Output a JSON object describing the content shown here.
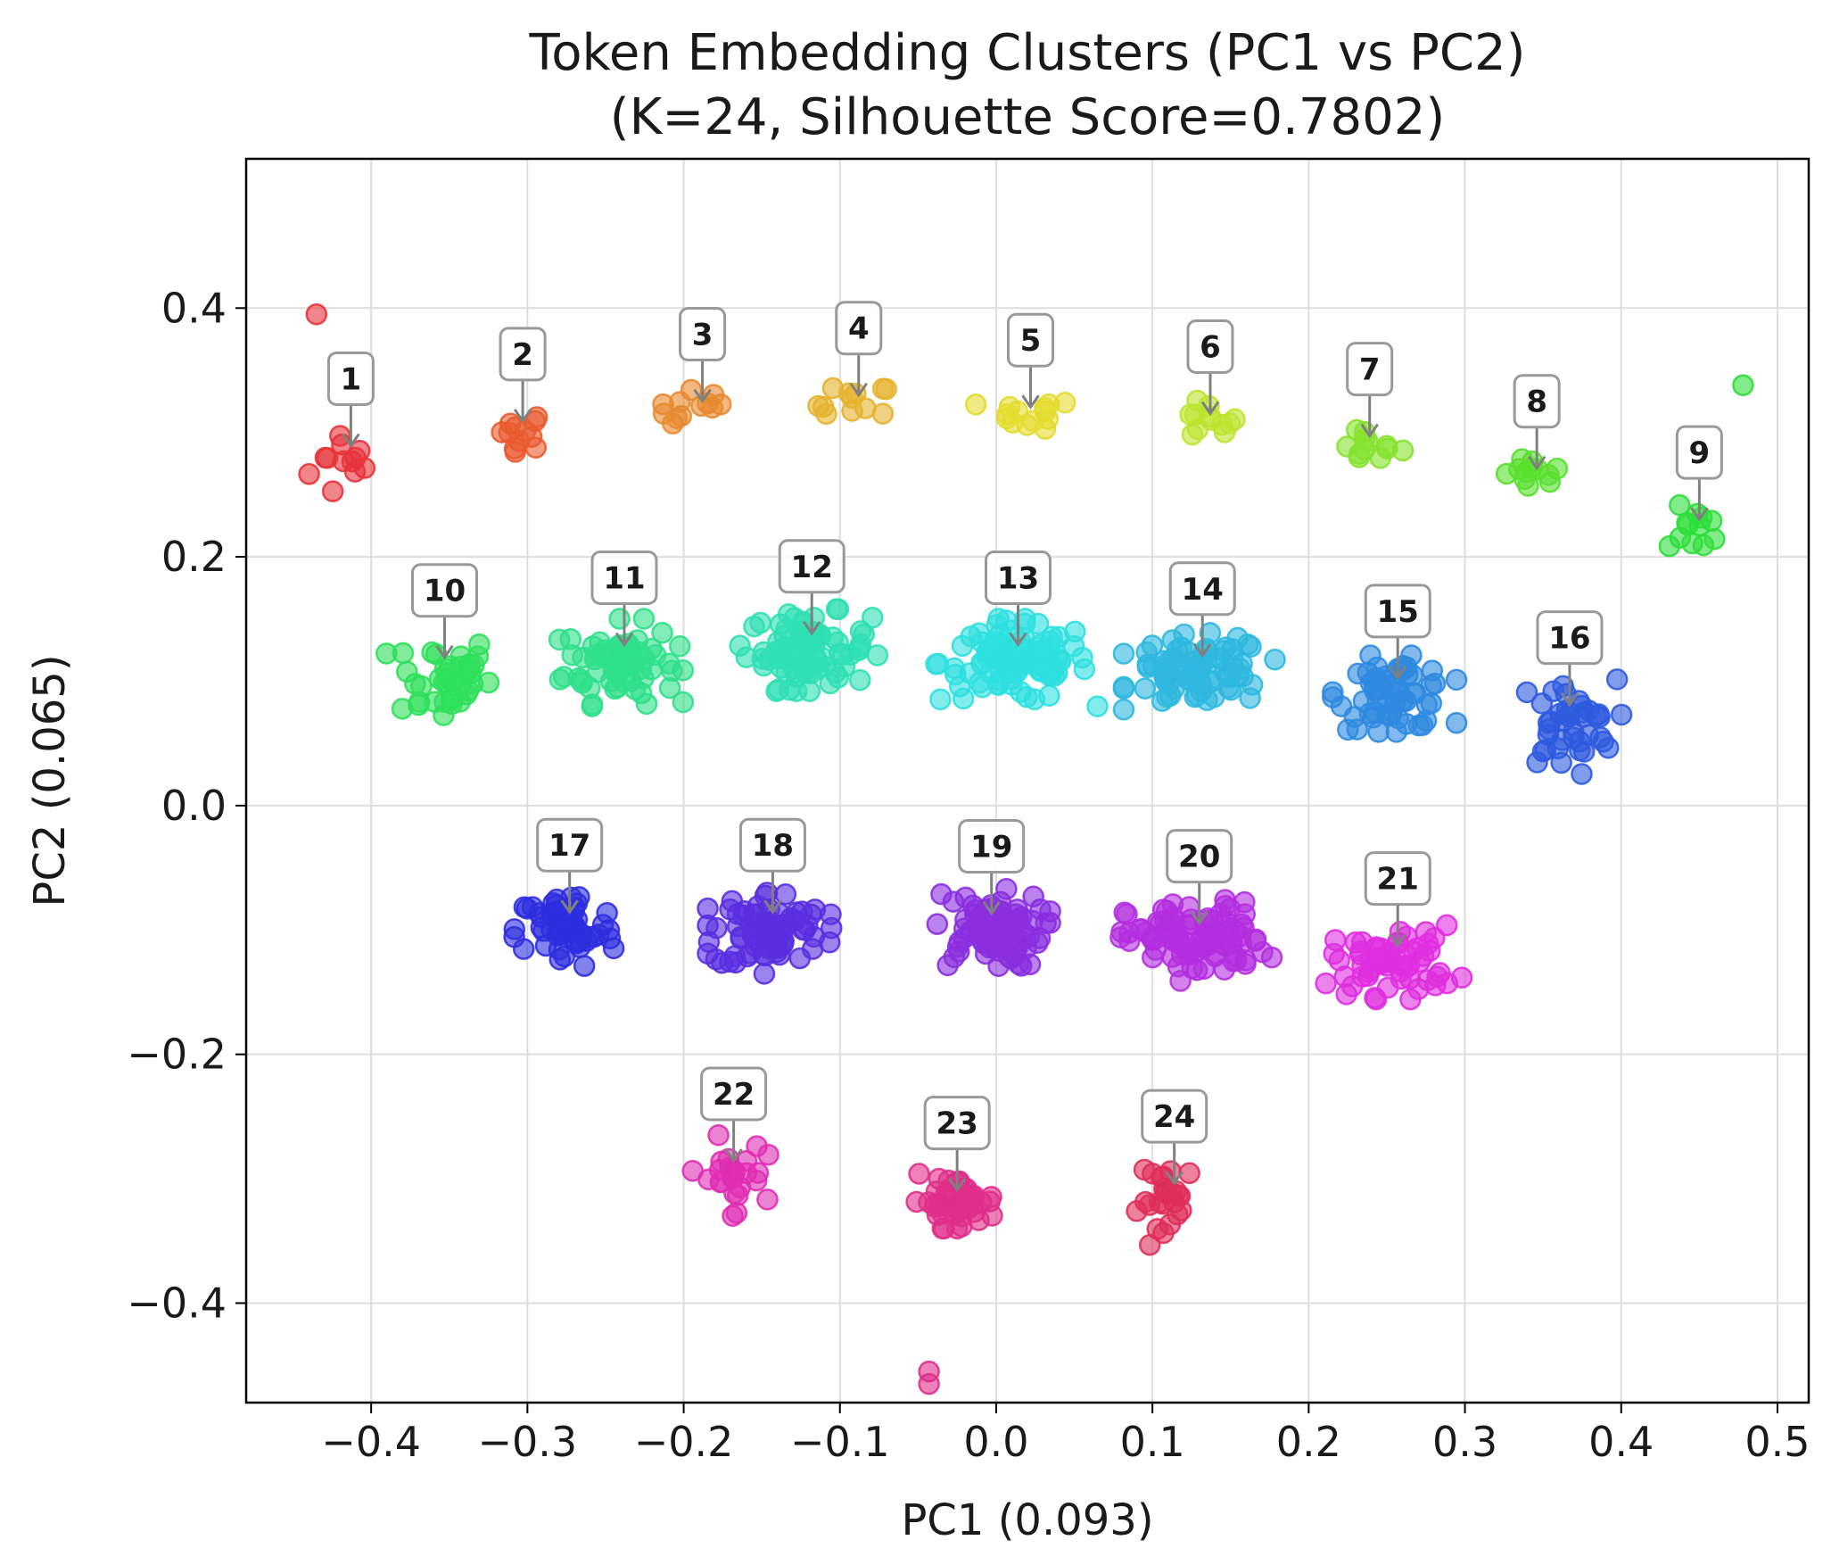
{
  "chart_data": {
    "type": "scatter",
    "title_line1": "Token Embedding Clusters (PC1 vs PC2)",
    "title_line2": "(K=24, Silhouette Score=0.7802)",
    "xlabel": "PC1 (0.093)",
    "ylabel": "PC2 (0.065)",
    "xlim": [
      -0.48,
      0.52
    ],
    "ylim": [
      -0.48,
      0.52
    ],
    "xticks": [
      -0.4,
      -0.3,
      -0.2,
      -0.1,
      0.0,
      0.1,
      0.2,
      0.3,
      0.4,
      0.5
    ],
    "xtick_labels": [
      "−0.4",
      "−0.3",
      "−0.2",
      "−0.1",
      "0.0",
      "0.1",
      "0.2",
      "0.3",
      "0.4",
      "0.5"
    ],
    "yticks": [
      -0.4,
      -0.2,
      0.0,
      0.2,
      0.4
    ],
    "ytick_labels": [
      "−0.4",
      "−0.2",
      "0.0",
      "0.2",
      "0.4"
    ],
    "grid": true,
    "clusters": [
      {
        "label": "1",
        "center": [
          -0.415,
          0.275
        ],
        "spread": [
          0.012,
          0.016
        ],
        "n": 12,
        "color": "#e8333a"
      },
      {
        "label": "2",
        "center": [
          -0.305,
          0.302
        ],
        "spread": [
          0.009,
          0.008
        ],
        "n": 12,
        "color": "#ea5a2e"
      },
      {
        "label": "3",
        "center": [
          -0.19,
          0.318
        ],
        "spread": [
          0.014,
          0.008
        ],
        "n": 12,
        "color": "#e8892e"
      },
      {
        "label": "4",
        "center": [
          -0.09,
          0.322
        ],
        "spread": [
          0.012,
          0.009
        ],
        "n": 12,
        "color": "#e6b32e"
      },
      {
        "label": "5",
        "center": [
          0.02,
          0.315
        ],
        "spread": [
          0.016,
          0.006
        ],
        "n": 14,
        "color": "#e4dc2e"
      },
      {
        "label": "6",
        "center": [
          0.135,
          0.308
        ],
        "spread": [
          0.01,
          0.008
        ],
        "n": 12,
        "color": "#bde42e"
      },
      {
        "label": "7",
        "center": [
          0.237,
          0.29
        ],
        "spread": [
          0.011,
          0.008
        ],
        "n": 12,
        "color": "#86e22e"
      },
      {
        "label": "8",
        "center": [
          0.344,
          0.265
        ],
        "spread": [
          0.01,
          0.007
        ],
        "n": 12,
        "color": "#58e02e"
      },
      {
        "label": "9",
        "center": [
          0.448,
          0.222
        ],
        "spread": [
          0.009,
          0.009
        ],
        "n": 12,
        "color": "#2ede3a"
      },
      {
        "label": "10",
        "center": [
          -0.355,
          0.103
        ],
        "spread": [
          0.016,
          0.018
        ],
        "n": 40,
        "color": "#2ee05a"
      },
      {
        "label": "11",
        "center": [
          -0.24,
          0.115
        ],
        "spread": [
          0.018,
          0.016
        ],
        "n": 70,
        "color": "#2ee08a"
      },
      {
        "label": "12",
        "center": [
          -0.12,
          0.125
        ],
        "spread": [
          0.02,
          0.015
        ],
        "n": 80,
        "color": "#2ee0b4"
      },
      {
        "label": "13",
        "center": [
          0.012,
          0.115
        ],
        "spread": [
          0.024,
          0.016
        ],
        "n": 100,
        "color": "#2ee0e0"
      },
      {
        "label": "14",
        "center": [
          0.13,
          0.108
        ],
        "spread": [
          0.022,
          0.014
        ],
        "n": 80,
        "color": "#2eb8e0"
      },
      {
        "label": "15",
        "center": [
          0.255,
          0.09
        ],
        "spread": [
          0.018,
          0.014
        ],
        "n": 60,
        "color": "#2e8ae0"
      },
      {
        "label": "16",
        "center": [
          0.365,
          0.065
        ],
        "spread": [
          0.016,
          0.018
        ],
        "n": 40,
        "color": "#2e5ae0"
      },
      {
        "label": "17",
        "center": [
          -0.275,
          -0.1
        ],
        "spread": [
          0.016,
          0.016
        ],
        "n": 60,
        "color": "#2e2ee0"
      },
      {
        "label": "18",
        "center": [
          -0.145,
          -0.1
        ],
        "spread": [
          0.018,
          0.016
        ],
        "n": 80,
        "color": "#5a2ee0"
      },
      {
        "label": "19",
        "center": [
          -0.005,
          -0.1
        ],
        "spread": [
          0.018,
          0.015
        ],
        "n": 80,
        "color": "#8a2ee0"
      },
      {
        "label": "20",
        "center": [
          0.128,
          -0.108
        ],
        "spread": [
          0.022,
          0.015
        ],
        "n": 100,
        "color": "#b42ee0"
      },
      {
        "label": "21",
        "center": [
          0.255,
          -0.125
        ],
        "spread": [
          0.02,
          0.014
        ],
        "n": 60,
        "color": "#e02ee0"
      },
      {
        "label": "22",
        "center": [
          -0.17,
          -0.3
        ],
        "spread": [
          0.011,
          0.016
        ],
        "n": 25,
        "color": "#e02eb4"
      },
      {
        "label": "23",
        "center": [
          -0.027,
          -0.318
        ],
        "spread": [
          0.014,
          0.01
        ],
        "n": 45,
        "color": "#e02e8a"
      },
      {
        "label": "24",
        "center": [
          0.112,
          -0.318
        ],
        "spread": [
          0.01,
          0.016
        ],
        "n": 25,
        "color": "#e02e5a"
      }
    ],
    "outliers": [
      {
        "x": -0.435,
        "y": 0.395,
        "color": "#e8333a"
      },
      {
        "x": 0.478,
        "y": 0.338,
        "color": "#2ede3a"
      },
      {
        "x": -0.043,
        "y": -0.455,
        "color": "#e02e8a"
      },
      {
        "x": -0.043,
        "y": -0.465,
        "color": "#e02e8a"
      }
    ]
  }
}
